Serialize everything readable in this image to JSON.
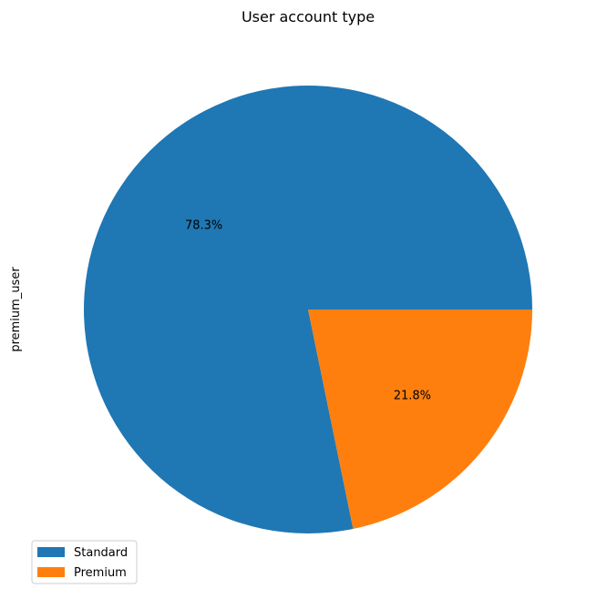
{
  "chart_data": {
    "type": "pie",
    "title": "User account type",
    "ylabel": "premium_user",
    "labels": [
      "Standard",
      "Premium"
    ],
    "values": [
      78.3,
      21.8
    ],
    "pct_labels": [
      "78.3%",
      "21.8%"
    ],
    "colors": [
      "#1f77b4",
      "#ff7f0e"
    ],
    "start_angle_deg": 0,
    "direction": "counterclockwise",
    "legend_position": "bottom-left"
  }
}
